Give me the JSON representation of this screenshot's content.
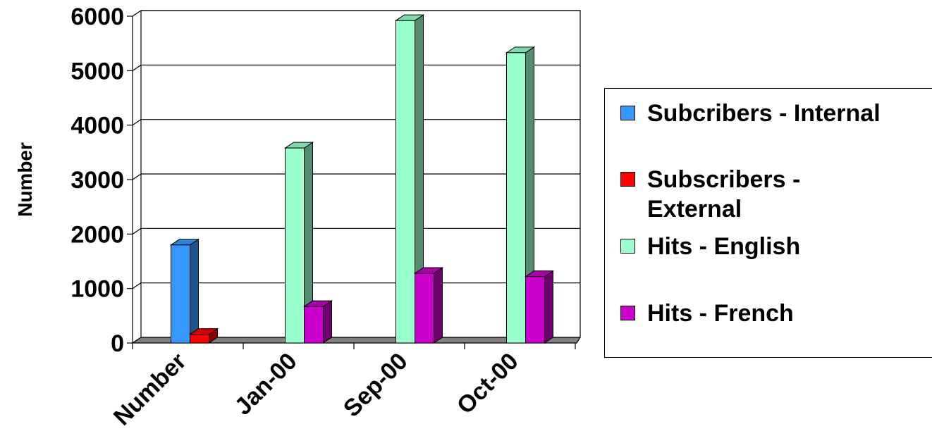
{
  "chart_data": {
    "type": "bar",
    "style": "3d-clustered-column",
    "categories": [
      "Number",
      "Jan-00",
      "Sep-00",
      "Oct-00"
    ],
    "ylabel": "Number",
    "ylim": [
      0,
      6000
    ],
    "yticks": [
      0,
      1000,
      2000,
      3000,
      4000,
      5000,
      6000
    ],
    "grid": true,
    "legend_position": "right",
    "series": [
      {
        "name": "Subcribers - Internal",
        "color": "#3399ff",
        "values": [
          1800,
          0,
          0,
          0
        ]
      },
      {
        "name": "Subscribers - External",
        "color": "#ff0000",
        "values": [
          160,
          0,
          0,
          0
        ]
      },
      {
        "name": "Hits - English",
        "color": "#99ffcc",
        "values": [
          0,
          3580,
          5920,
          5330
        ]
      },
      {
        "name": "Hits - French",
        "color": "#cc00cc",
        "values": [
          0,
          670,
          1280,
          1220
        ]
      }
    ]
  }
}
